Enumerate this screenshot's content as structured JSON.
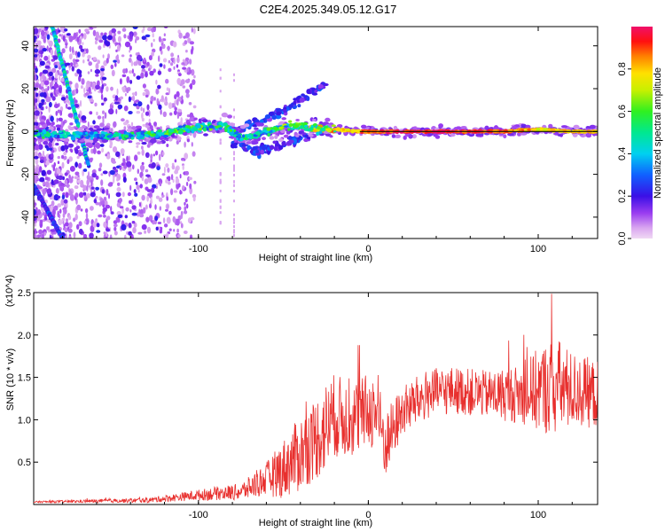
{
  "title": "C2E4.2025.349.05.12.G17",
  "chart_data": [
    {
      "type": "heatmap",
      "name": "spectrogram",
      "xlabel": "Height of straight line (km)",
      "ylabel": "Frequency (Hz)",
      "xlim": [
        -197,
        135
      ],
      "ylim": [
        -50,
        49
      ],
      "xticks": [
        -100,
        0,
        100
      ],
      "xtick_labels": [
        "-100",
        "0",
        "100"
      ],
      "yticks": [
        -40,
        -20,
        0,
        20,
        40
      ],
      "ytick_labels": [
        "-40",
        "-20",
        "0",
        "20",
        "40"
      ],
      "colorbar": {
        "label": "Normalized spectral amplitude",
        "range": [
          0,
          1
        ],
        "ticks": [
          0.0,
          0.2,
          0.4,
          0.6,
          0.8
        ],
        "tick_labels": [
          "0.0",
          "0.2",
          "0.4",
          "0.6",
          "0.8"
        ]
      },
      "features": {
        "main_ridge": [
          {
            "x": -197,
            "y": -1,
            "a": 0.5
          },
          {
            "x": -170,
            "y": -2,
            "a": 0.45
          },
          {
            "x": -140,
            "y": -2,
            "a": 0.5
          },
          {
            "x": -120,
            "y": -1,
            "a": 0.55
          },
          {
            "x": -100,
            "y": 2,
            "a": 0.55
          },
          {
            "x": -85,
            "y": 3,
            "a": 0.55
          },
          {
            "x": -75,
            "y": -3,
            "a": 0.5
          },
          {
            "x": -60,
            "y": 0,
            "a": 0.55
          },
          {
            "x": -45,
            "y": 3,
            "a": 0.6
          },
          {
            "x": -30,
            "y": 1,
            "a": 0.7
          },
          {
            "x": -20,
            "y": 1,
            "a": 0.8
          },
          {
            "x": -5,
            "y": 0,
            "a": 0.9
          },
          {
            "x": 0,
            "y": 0,
            "a": 0.95
          },
          {
            "x": 20,
            "y": 0,
            "a": 1.0
          },
          {
            "x": 60,
            "y": 0,
            "a": 1.0
          },
          {
            "x": 80,
            "y": 0,
            "a": 0.95
          },
          {
            "x": 100,
            "y": 1,
            "a": 0.8
          },
          {
            "x": 120,
            "y": 0,
            "a": 0.85
          },
          {
            "x": 135,
            "y": 0,
            "a": 0.8
          }
        ],
        "diagonal_streaks": [
          {
            "x0": -186,
            "y0": 49,
            "x1": -165,
            "y1": -15,
            "a": 0.45
          },
          {
            "x0": -197,
            "y0": -25,
            "x1": -180,
            "y1": -50,
            "a": 0.25
          }
        ],
        "upper_branch": [
          {
            "x": -80,
            "y": 0
          },
          {
            "x": -60,
            "y": 6
          },
          {
            "x": -45,
            "y": 12
          },
          {
            "x": -35,
            "y": 18
          },
          {
            "x": -25,
            "y": 22
          }
        ],
        "lower_branch": [
          {
            "x": -80,
            "y": -5
          },
          {
            "x": -65,
            "y": -9
          },
          {
            "x": -50,
            "y": -6
          },
          {
            "x": -35,
            "y": -2
          }
        ]
      }
    },
    {
      "type": "line",
      "name": "snr",
      "xlabel": "Height of straight line (km)",
      "ylabel": "SNR (10 * v/v)",
      "y_multiplier": "(x10^4)",
      "xlim": [
        -197,
        135
      ],
      "ylim": [
        0,
        2.5
      ],
      "xticks": [
        -100,
        0,
        100
      ],
      "xtick_labels": [
        "-100",
        "0",
        "100"
      ],
      "yticks": [
        0.5,
        1.0,
        1.5,
        2.0,
        2.5
      ],
      "ytick_labels": [
        "0.5",
        "1.0",
        "1.5",
        "2.0",
        "2.5"
      ],
      "color": "#e8302e",
      "envelope": {
        "x": [
          -197,
          -160,
          -130,
          -110,
          -90,
          -75,
          -60,
          -50,
          -40,
          -30,
          -25,
          -20,
          -10,
          0,
          5,
          10,
          20,
          35,
          50,
          70,
          90,
          100,
          110,
          120,
          135
        ],
        "y": [
          0.03,
          0.04,
          0.05,
          0.09,
          0.13,
          0.15,
          0.3,
          0.42,
          0.6,
          0.8,
          0.9,
          1.05,
          1.0,
          1.1,
          1.1,
          0.7,
          1.1,
          1.3,
          1.35,
          1.3,
          1.3,
          1.35,
          1.4,
          1.35,
          1.3
        ],
        "amp": [
          0.01,
          0.02,
          0.03,
          0.05,
          0.08,
          0.1,
          0.2,
          0.35,
          0.45,
          0.5,
          0.55,
          0.5,
          0.45,
          0.45,
          0.45,
          0.4,
          0.3,
          0.3,
          0.28,
          0.28,
          0.35,
          0.5,
          0.6,
          0.45,
          0.4
        ]
      }
    }
  ]
}
